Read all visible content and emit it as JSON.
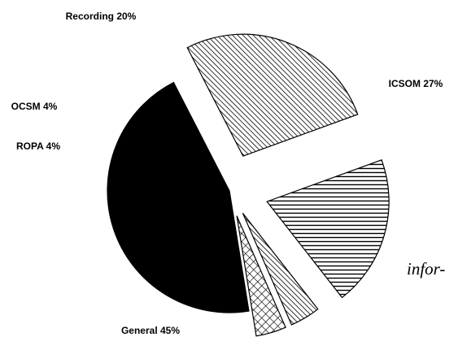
{
  "chart_data": {
    "type": "pie",
    "title": "",
    "exploded": true,
    "slices": [
      {
        "label": "Recording 20%",
        "name": "Recording",
        "value": 20,
        "fill": "horizontal-lines"
      },
      {
        "label": "ICSOM 27%",
        "name": "ICSOM",
        "value": 27,
        "fill": "diagonal-hatch"
      },
      {
        "label": "General 45%",
        "name": "General",
        "value": 45,
        "fill": "solid-black"
      },
      {
        "label": "ROPA 4%",
        "name": "ROPA",
        "value": 4,
        "fill": "crosshatch"
      },
      {
        "label": "OCSM 4%",
        "name": "OCSM",
        "value": 4,
        "fill": "diagonal-hatch"
      }
    ]
  },
  "page_text_fragment": "infor-",
  "colors": {
    "ink": "#000000",
    "background": "#ffffff"
  }
}
